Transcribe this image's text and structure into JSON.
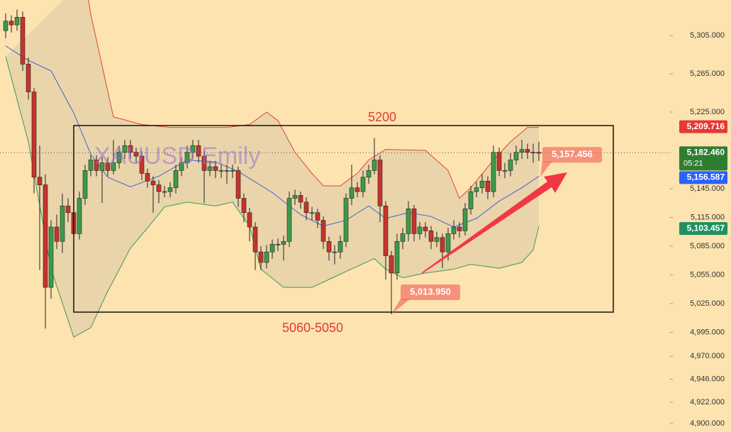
{
  "chart_data": {
    "type": "candlestick",
    "watermark": "XAUUSD Emily",
    "up_color": "#3d9a4a",
    "down_color": "#c8332b",
    "open": [
      5310,
      5320,
      5316,
      5324,
      5275,
      5246,
      5157,
      5149,
      5042,
      5105,
      5090,
      5127,
      5120,
      5098,
      5135,
      5164,
      5175,
      5164,
      5172,
      5164,
      5172,
      5183,
      5190,
      5183,
      5179,
      5161,
      5153,
      5149,
      5142,
      5142,
      5146,
      5164,
      5172,
      5183,
      5190,
      5179,
      5164,
      5168,
      5164,
      5164,
      5164,
      5164,
      5135,
      5120,
      5105,
      5079,
      5068,
      5079,
      5087,
      5087,
      5090,
      5135,
      5138,
      5131,
      5120,
      5120,
      5112,
      5090,
      5079,
      5079,
      5090,
      5135,
      5146,
      5142,
      5157,
      5164,
      5175,
      5127,
      5075,
      5057,
      5090,
      5098,
      5124,
      5098,
      5105,
      5101,
      5090,
      5094,
      5079,
      5098,
      5105,
      5101,
      5124,
      5142,
      5146,
      5153,
      5142,
      5183,
      5164,
      5164,
      5175,
      5183,
      5186,
      5183,
      5183
    ],
    "high": [
      5328,
      5326,
      5332,
      5330,
      5282,
      5250,
      5190,
      5160,
      5112,
      5118,
      5140,
      5135,
      5125,
      5142,
      5170,
      5180,
      5180,
      5178,
      5178,
      5196,
      5190,
      5196,
      5196,
      5188,
      5184,
      5166,
      5158,
      5154,
      5148,
      5152,
      5170,
      5178,
      5190,
      5196,
      5196,
      5184,
      5174,
      5174,
      5170,
      5170,
      5170,
      5168,
      5140,
      5125,
      5110,
      5085,
      5086,
      5092,
      5093,
      5096,
      5142,
      5144,
      5142,
      5136,
      5126,
      5124,
      5116,
      5095,
      5086,
      5096,
      5140,
      5170,
      5152,
      5164,
      5170,
      5198,
      5180,
      5132,
      5080,
      5098,
      5104,
      5132,
      5128,
      5110,
      5110,
      5106,
      5100,
      5098,
      5104,
      5112,
      5110,
      5130,
      5148,
      5152,
      5160,
      5158,
      5190,
      5188,
      5172,
      5182,
      5190,
      5196,
      5192,
      5192,
      5194
    ],
    "low": [
      5302,
      5308,
      5310,
      5268,
      5238,
      5140,
      5060,
      4999,
      5030,
      5082,
      5078,
      5110,
      5090,
      5092,
      5128,
      5158,
      5158,
      5130,
      5158,
      5160,
      5166,
      5176,
      5176,
      5172,
      5154,
      5146,
      5120,
      5130,
      5136,
      5136,
      5140,
      5158,
      5166,
      5176,
      5172,
      5130,
      5158,
      5156,
      5156,
      5150,
      5156,
      5126,
      5110,
      5090,
      5060,
      5060,
      5062,
      5072,
      5080,
      5070,
      5084,
      5128,
      5124,
      5112,
      5112,
      5104,
      5082,
      5070,
      5066,
      5072,
      5084,
      5128,
      5136,
      5136,
      5150,
      5160,
      5110,
      5050,
      5013.95,
      5050,
      5082,
      5090,
      5090,
      5092,
      5094,
      5082,
      5084,
      5062,
      5070,
      5092,
      5094,
      5096,
      5118,
      5136,
      5140,
      5134,
      5136,
      5158,
      5156,
      5158,
      5170,
      5176,
      5176,
      5172,
      5174
    ],
    "close": [
      5320,
      5316,
      5324,
      5275,
      5246,
      5157,
      5149,
      5042,
      5105,
      5090,
      5127,
      5120,
      5098,
      5135,
      5164,
      5175,
      5164,
      5172,
      5164,
      5172,
      5183,
      5190,
      5183,
      5179,
      5161,
      5153,
      5149,
      5142,
      5142,
      5146,
      5164,
      5172,
      5183,
      5190,
      5179,
      5164,
      5168,
      5164,
      5164,
      5164,
      5164,
      5135,
      5120,
      5105,
      5079,
      5068,
      5079,
      5087,
      5087,
      5090,
      5135,
      5138,
      5131,
      5120,
      5120,
      5112,
      5090,
      5079,
      5079,
      5090,
      5135,
      5146,
      5142,
      5157,
      5164,
      5175,
      5127,
      5075,
      5057,
      5090,
      5098,
      5124,
      5098,
      5105,
      5101,
      5090,
      5094,
      5079,
      5098,
      5105,
      5101,
      5124,
      5142,
      5146,
      5153,
      5142,
      5183,
      5164,
      5164,
      5175,
      5183,
      5186,
      5183,
      5183,
      5182
    ],
    "bands": [
      {
        "color": "#e0443a",
        "x": [
          14,
          15,
          19,
          24,
          29,
          34,
          39,
          43,
          46,
          48,
          51,
          54,
          56,
          59,
          62,
          64,
          67,
          74,
          78,
          80,
          82,
          86,
          89,
          92,
          94
        ],
        "values": [
          5364,
          5327,
          5220,
          5212,
          5209,
          5209,
          5209,
          5212,
          5225,
          5216,
          5183,
          5161,
          5148,
          5148,
          5161,
          5175,
          5186,
          5185,
          5164,
          5135,
          5146,
          5175,
          5194,
          5209,
          5209
        ]
      },
      {
        "color": "#3f63d8",
        "x": [
          0,
          4,
          8,
          12,
          15,
          18,
          22,
          27,
          32,
          37,
          41,
          47,
          52,
          56,
          60,
          64,
          67,
          71,
          75,
          79,
          83,
          87,
          91,
          94
        ],
        "values": [
          5294,
          5279,
          5268,
          5224,
          5181,
          5157,
          5147,
          5158,
          5175,
          5173,
          5163,
          5141,
          5118,
          5106,
          5112,
          5127,
          5114,
          5120,
          5116,
          5105,
          5114,
          5132,
          5146,
          5158
        ]
      },
      {
        "color": "#3a9a5a",
        "x": [
          0,
          4,
          8,
          12,
          15,
          18,
          22,
          25,
          28,
          32,
          37,
          40,
          43,
          45,
          49,
          54,
          58,
          62,
          65,
          67,
          70,
          74,
          79,
          82,
          87,
          91,
          93,
          94
        ],
        "values": [
          5283,
          5194,
          5061,
          4990,
          5000,
          5038,
          5083,
          5104,
          5126,
          5131,
          5127,
          5131,
          5106,
          5061,
          5042,
          5042,
          5053,
          5064,
          5072,
          5061,
          5052,
          5057,
          5061,
          5066,
          5062,
          5068,
          5081,
          5106
        ]
      }
    ],
    "ylim": [
      4891,
      5342
    ],
    "yticks": [
      {
        "value": 5305,
        "label": "5,305.000"
      },
      {
        "value": 5265,
        "label": "5,265.000"
      },
      {
        "value": 5225,
        "label": "5,225.000"
      },
      {
        "value": 5145,
        "label": "5,145.000"
      },
      {
        "value": 5115,
        "label": "5,115.000"
      },
      {
        "value": 5085,
        "label": "5,085.000"
      },
      {
        "value": 5055,
        "label": "5,055.000"
      },
      {
        "value": 5025,
        "label": "5,025.000"
      },
      {
        "value": 4995,
        "label": "4,995.000"
      },
      {
        "value": 4970,
        "label": "4,970.000"
      },
      {
        "value": 4946,
        "label": "4,946.000"
      },
      {
        "value": 4922,
        "label": "4,922.000"
      },
      {
        "value": 4900,
        "label": "4,900.000"
      }
    ],
    "grid": false,
    "price_tags": [
      {
        "value": 5209.716,
        "label": "5,209.716",
        "color": "#e53935"
      },
      {
        "value": 5182.46,
        "label": "5,182.460",
        "timer": "05:21",
        "color": "#2e7d32"
      },
      {
        "value": 5156.587,
        "label": "5,156.587",
        "color": "#2962ff"
      },
      {
        "value": 5103.457,
        "label": "5,103.457",
        "color": "#1f9060"
      }
    ],
    "callouts": [
      {
        "value": 5013.95,
        "label": "5,013.950"
      },
      {
        "value": 5157.456,
        "label": "5,157.456"
      }
    ],
    "annotations": [
      {
        "text": "5200"
      },
      {
        "text": "5060-5050"
      }
    ]
  }
}
